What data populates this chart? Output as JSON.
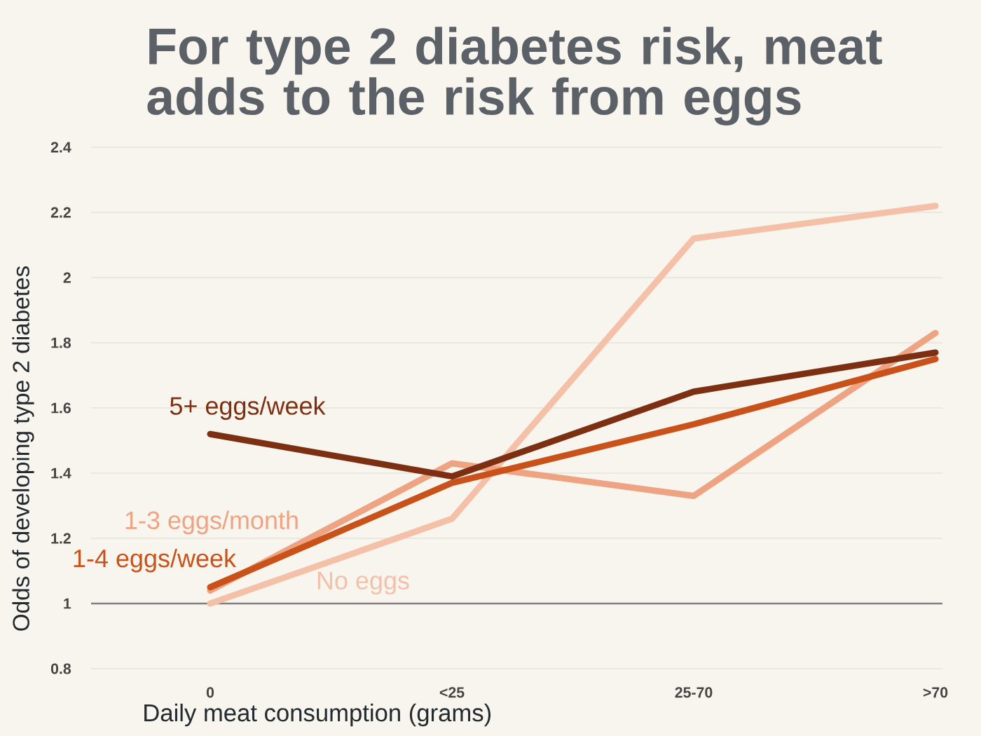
{
  "chart_data": {
    "type": "line",
    "title": "For type 2 diabetes risk, meat adds to the risk from eggs",
    "xlabel": "Daily meat consumption (grams)",
    "ylabel": "Odds of developing type 2 diabetes",
    "categories": [
      "0",
      "<25",
      "25-70",
      ">70"
    ],
    "series": [
      {
        "name": "No eggs",
        "color": "#f4c1a8",
        "values": [
          1.0,
          1.26,
          2.12,
          2.22
        ]
      },
      {
        "name": "1-3 eggs/month",
        "color": "#eea382",
        "values": [
          1.04,
          1.43,
          1.33,
          1.83
        ]
      },
      {
        "name": "1-4 eggs/week",
        "color": "#c8521a",
        "values": [
          1.05,
          1.37,
          1.55,
          1.75
        ]
      },
      {
        "name": "5+ eggs/week",
        "color": "#7d2f12",
        "values": [
          1.52,
          1.39,
          1.65,
          1.77
        ]
      }
    ],
    "ylim": [
      0.8,
      2.4
    ],
    "yticks": [
      0.8,
      1,
      1.2,
      1.4,
      1.6,
      1.8,
      2,
      2.2,
      2.4
    ],
    "ref_lines": [
      {
        "axis": "y",
        "value": 1,
        "color": "#808080"
      }
    ],
    "grid": "y",
    "line_style": "solid"
  }
}
